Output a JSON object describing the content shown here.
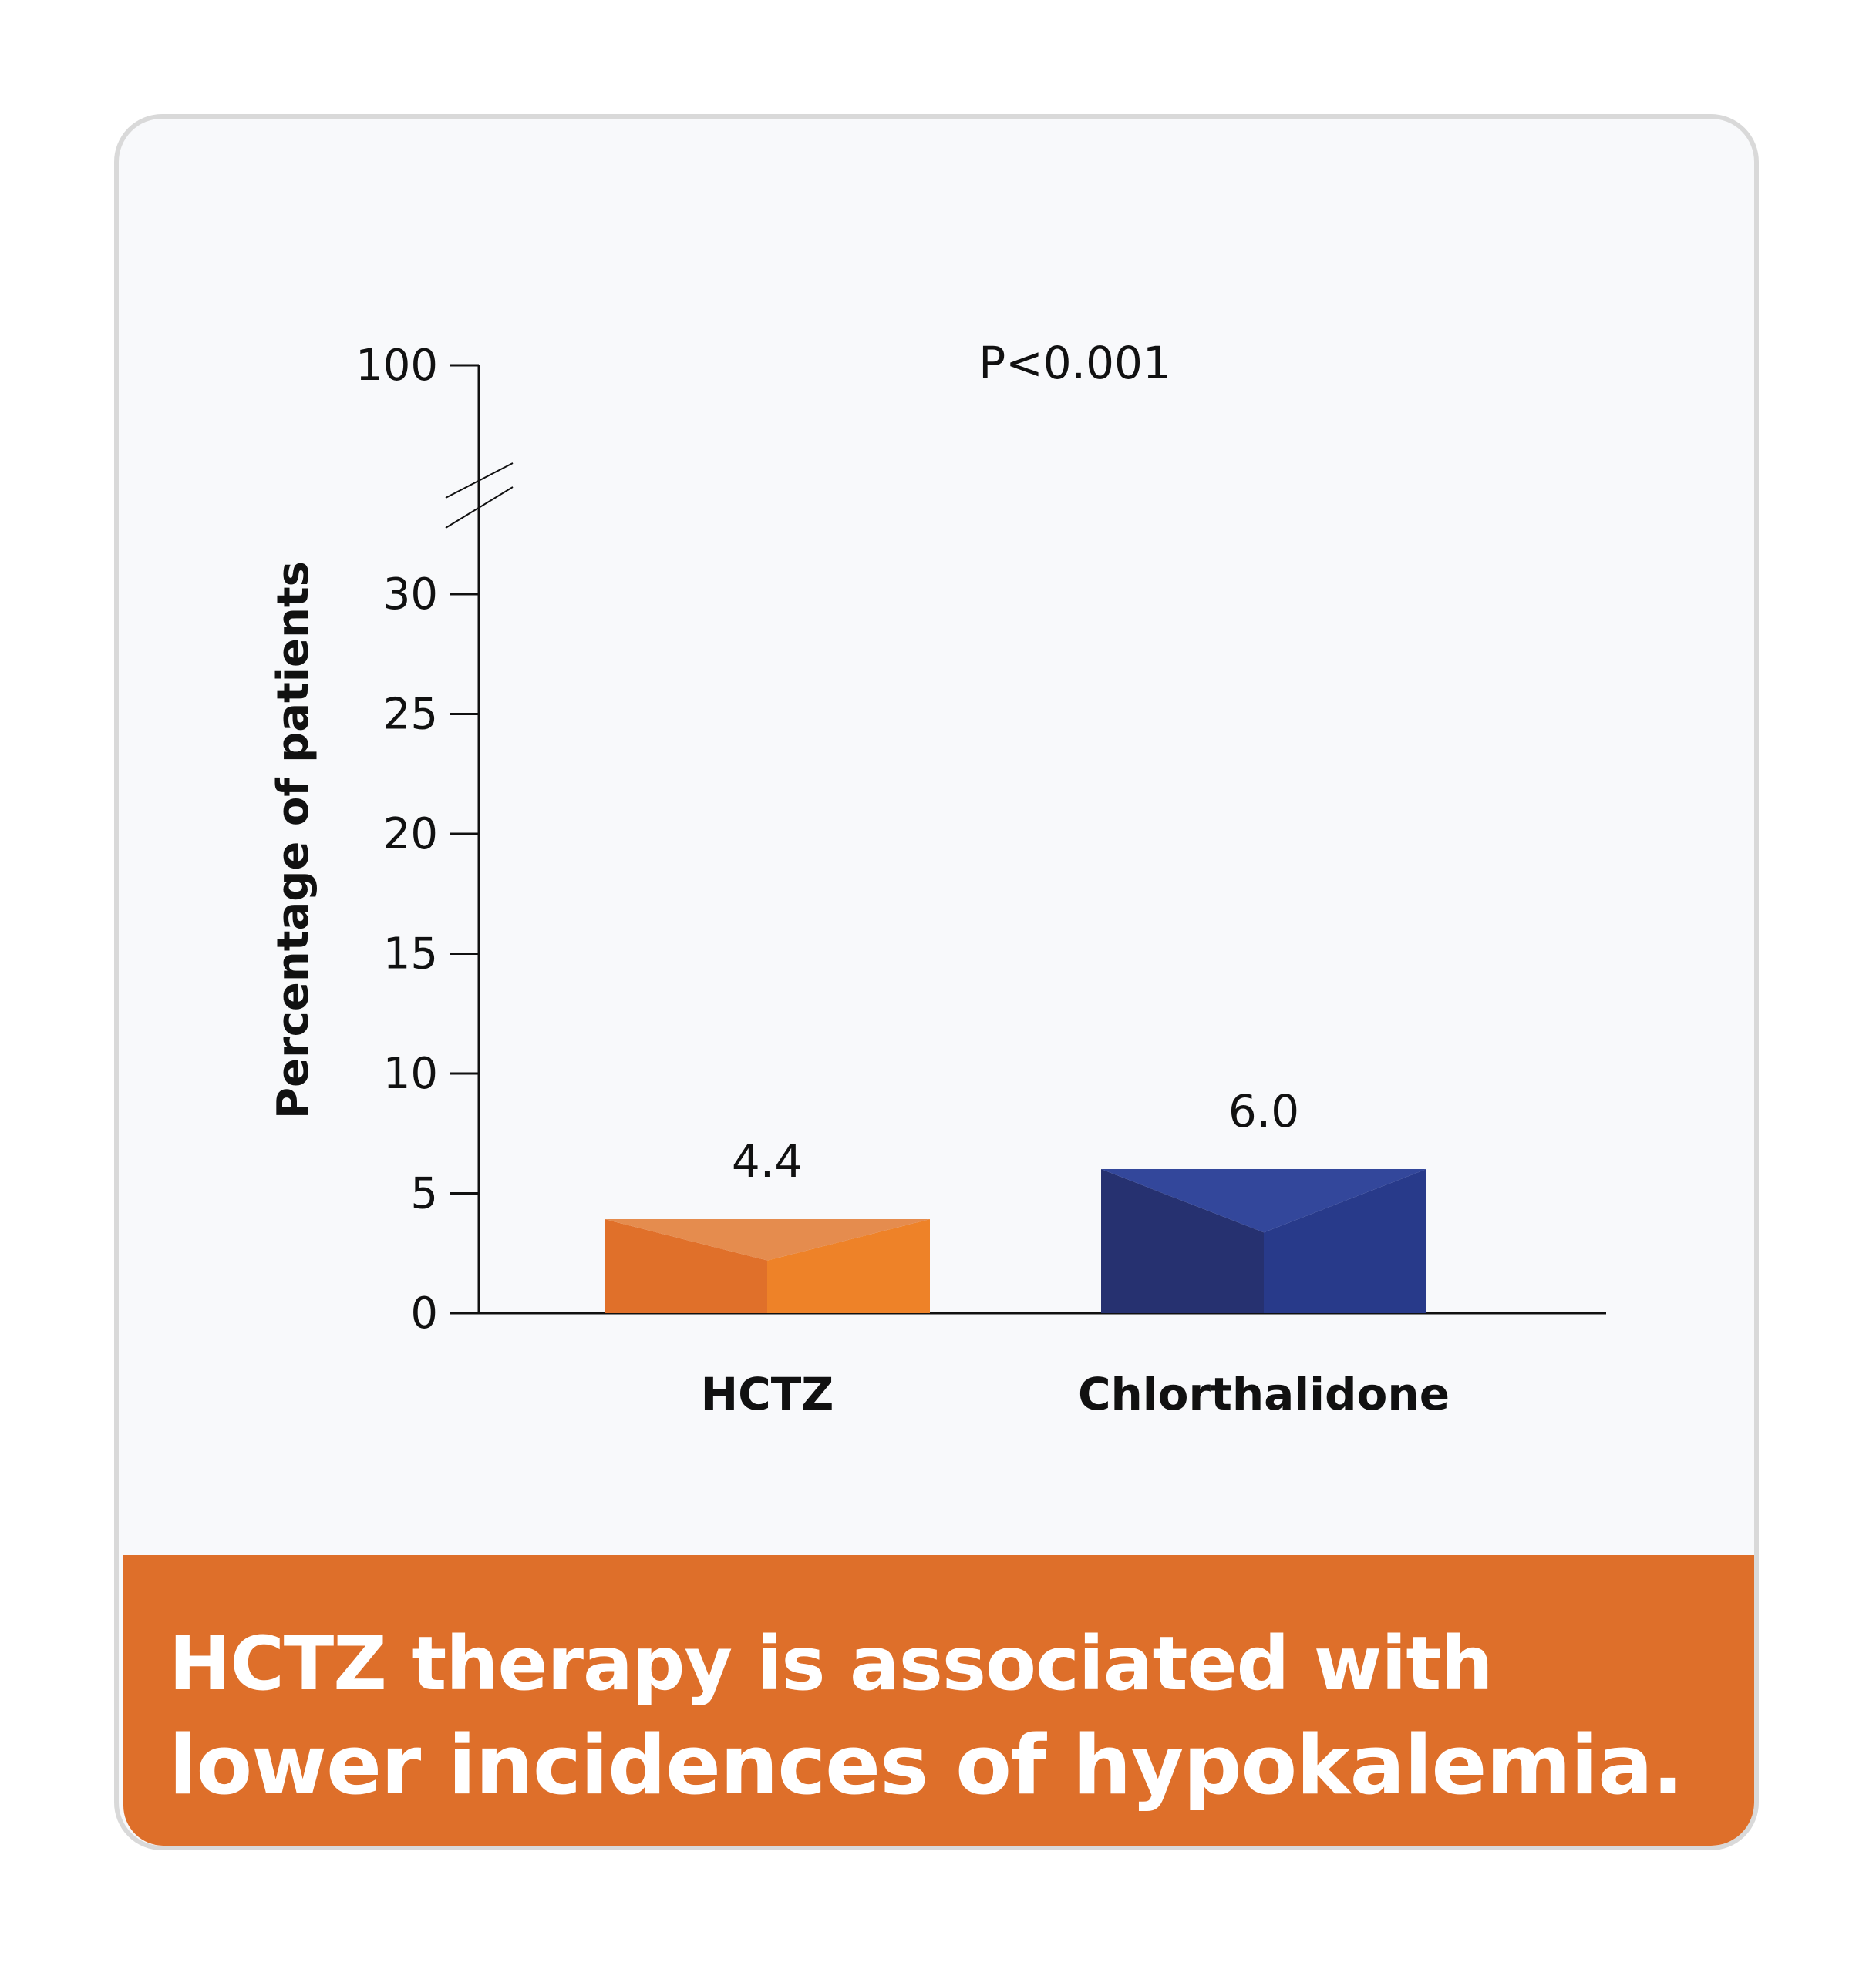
{
  "chart_data": {
    "type": "bar",
    "categories": [
      "HCTZ",
      "Chlorthalidone"
    ],
    "values": [
      4.4,
      6.0
    ],
    "data_labels": [
      "4.4",
      "6.0"
    ],
    "ylabel": "Percentage of patients",
    "xlabel": "",
    "yticks": [
      0,
      5,
      10,
      15,
      20,
      25,
      30,
      100
    ],
    "ylim": [
      0,
      100
    ],
    "axis_break": "between 30 and 100",
    "annotation": "P<0.001",
    "grid": false,
    "legend": "none",
    "colors": {
      "HCTZ": [
        "#e0702a",
        "#ee8228",
        "#e58c4e"
      ],
      "Chlorthalidone": [
        "#263170",
        "#283a8a",
        "#33479b"
      ]
    }
  },
  "banner": {
    "text_regular": "HCTZ therapy is associated with ",
    "text_emphasis": "lower incidences of hypokalemia.",
    "color": "#de6f2a"
  }
}
